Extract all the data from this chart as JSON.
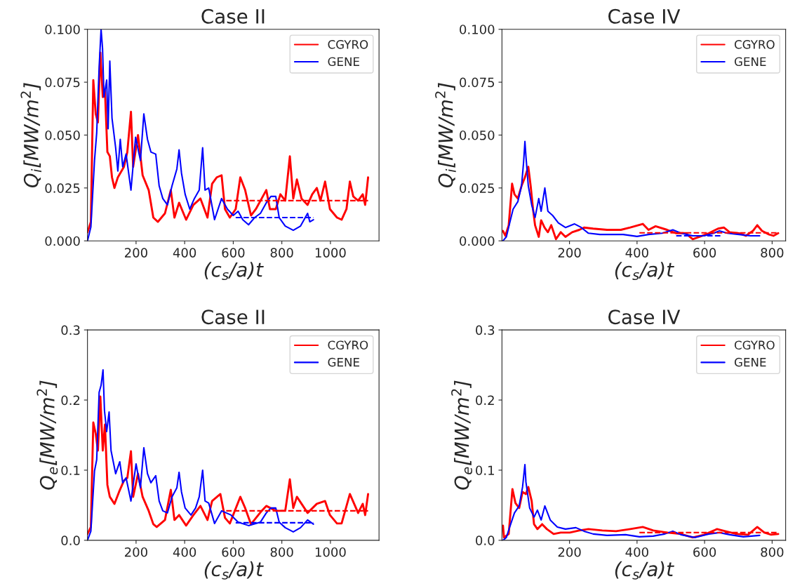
{
  "chart_data": [
    {
      "type": "line",
      "title": "Case II",
      "xlabel": "(c$_{s}$/a)t",
      "ylabel": "Q$_{i}$[MW/m$^{2}$]",
      "xlim": [
        0,
        1200
      ],
      "xticks": [
        200,
        400,
        600,
        800,
        1000
      ],
      "ylim": [
        0,
        0.1
      ],
      "yticks": [
        {
          "value": 0,
          "label": "0.000"
        },
        {
          "value": 0.025,
          "label": "0.025"
        },
        {
          "value": 0.05,
          "label": "0.050"
        },
        {
          "value": 0.075,
          "label": "0.075"
        },
        {
          "value": 0.1,
          "label": "0.100"
        }
      ],
      "legend": "top right",
      "grid": false,
      "series": [
        {
          "name": "CGYRO",
          "color": "#ff0000",
          "line_style": "solid",
          "x": [
            0,
            14,
            24,
            34,
            43,
            53,
            63,
            72,
            82,
            92,
            101,
            111,
            125,
            150,
            164,
            179,
            188,
            208,
            227,
            252,
            271,
            290,
            319,
            343,
            358,
            377,
            406,
            436,
            465,
            494,
            513,
            532,
            552,
            566,
            586,
            610,
            629,
            649,
            673,
            693,
            717,
            736,
            751,
            775,
            794,
            814,
            833,
            847,
            862,
            881,
            906,
            925,
            944,
            959,
            978,
            998,
            1027,
            1046,
            1066,
            1080,
            1094,
            1114,
            1133,
            1143,
            1155
          ],
          "values": [
            0.004,
            0.009,
            0.076,
            0.06,
            0.056,
            0.089,
            0.068,
            0.071,
            0.042,
            0.04,
            0.03,
            0.025,
            0.03,
            0.035,
            0.042,
            0.061,
            0.035,
            0.05,
            0.031,
            0.024,
            0.011,
            0.009,
            0.013,
            0.024,
            0.011,
            0.018,
            0.01,
            0.017,
            0.02,
            0.011,
            0.027,
            0.03,
            0.031,
            0.015,
            0.011,
            0.015,
            0.03,
            0.024,
            0.012,
            0.015,
            0.02,
            0.024,
            0.015,
            0.015,
            0.022,
            0.019,
            0.04,
            0.02,
            0.029,
            0.02,
            0.017,
            0.022,
            0.025,
            0.019,
            0.028,
            0.015,
            0.011,
            0.01,
            0.015,
            0.028,
            0.021,
            0.019,
            0.022,
            0.017,
            0.03
          ]
        },
        {
          "name": "GENE",
          "color": "#0000ff",
          "line_style": "solid",
          "x": [
            0,
            14,
            29,
            38,
            48,
            56,
            62,
            68,
            79,
            85,
            92,
            101,
            116,
            125,
            135,
            145,
            159,
            179,
            198,
            218,
            232,
            247,
            261,
            281,
            295,
            310,
            329,
            348,
            368,
            377,
            387,
            402,
            421,
            440,
            460,
            474,
            484,
            499,
            523,
            552,
            576,
            600,
            620,
            639,
            663,
            688,
            712,
            736,
            755,
            775,
            789,
            814,
            847,
            877,
            906,
            915,
            930
          ],
          "values": [
            0,
            0.0065,
            0.038,
            0.051,
            0.082,
            0.1,
            0.091,
            0.068,
            0.076,
            0.053,
            0.085,
            0.058,
            0.044,
            0.033,
            0.048,
            0.035,
            0.041,
            0.024,
            0.049,
            0.038,
            0.06,
            0.048,
            0.042,
            0.041,
            0.026,
            0.02,
            0.017,
            0.026,
            0.034,
            0.043,
            0.032,
            0.022,
            0.015,
            0.02,
            0.024,
            0.044,
            0.024,
            0.025,
            0.01,
            0.02,
            0.015,
            0.012,
            0.014,
            0.01,
            0.0076,
            0.011,
            0.013,
            0.018,
            0.021,
            0.021,
            0.011,
            0.007,
            0.005,
            0.007,
            0.013,
            0.009,
            0.01
          ]
        },
        {
          "color": "#ff0000",
          "line_style": "dashed",
          "x": [
            571,
            1155
          ],
          "values": [
            0.019,
            0.019
          ]
        },
        {
          "color": "#0000ff",
          "line_style": "dashed",
          "x": [
            610,
            930
          ],
          "values": [
            0.011,
            0.011
          ]
        }
      ]
    },
    {
      "type": "line",
      "title": "Case IV",
      "xlabel": "(c$_{s}$/a)t",
      "ylabel": "Q$_{i}$[MW/m$^{2}$]",
      "xlim": [
        0,
        840
      ],
      "xticks": [
        200,
        400,
        600,
        800
      ],
      "ylim": [
        0,
        0.1
      ],
      "yticks": [
        {
          "value": 0,
          "label": "0.000"
        },
        {
          "value": 0.025,
          "label": "0.025"
        },
        {
          "value": 0.05,
          "label": "0.050"
        },
        {
          "value": 0.075,
          "label": "0.075"
        },
        {
          "value": 0.1,
          "label": "0.100"
        }
      ],
      "legend": "top right",
      "grid": false,
      "series": [
        {
          "name": "CGYRO",
          "color": "#ff0000",
          "line_style": "solid",
          "x": [
            3,
            10,
            20,
            30,
            37,
            47,
            58,
            68,
            78,
            85,
            92,
            98,
            109,
            116,
            126,
            136,
            146,
            160,
            174,
            188,
            208,
            229,
            243,
            270,
            311,
            352,
            380,
            417,
            434,
            455,
            489,
            516,
            544,
            565,
            585,
            613,
            640,
            657,
            674,
            702,
            722,
            743,
            756,
            770,
            791,
            804,
            818
          ],
          "values": [
            0.0047,
            0.0024,
            0.0074,
            0.027,
            0.022,
            0.02,
            0.026,
            0.03,
            0.035,
            0.026,
            0.015,
            0.0074,
            0.0019,
            0.0097,
            0.0063,
            0.0041,
            0.0074,
            0.0008,
            0.0041,
            0.0019,
            0.0041,
            0.0052,
            0.0063,
            0.0058,
            0.0052,
            0.0052,
            0.0063,
            0.008,
            0.0052,
            0.0069,
            0.0052,
            0.0036,
            0.0036,
            0.0008,
            0.0019,
            0.0036,
            0.0058,
            0.0063,
            0.0041,
            0.0036,
            0.0024,
            0.0047,
            0.0074,
            0.0047,
            0.003,
            0.0024,
            0.0036
          ]
        },
        {
          "name": "GENE",
          "color": "#0000ff",
          "line_style": "solid",
          "x": [
            3,
            13,
            23,
            33,
            47,
            58,
            64,
            68,
            71,
            78,
            88,
            98,
            109,
            116,
            127,
            136,
            150,
            167,
            188,
            215,
            235,
            256,
            290,
            325,
            359,
            400,
            434,
            475,
            506,
            530,
            565,
            599,
            627,
            644,
            667,
            702,
            736,
            763
          ],
          "values": [
            0,
            0.0019,
            0.0085,
            0.015,
            0.0185,
            0.026,
            0.037,
            0.047,
            0.04,
            0.026,
            0.017,
            0.011,
            0.02,
            0.014,
            0.025,
            0.014,
            0.012,
            0.0085,
            0.0063,
            0.008,
            0.0063,
            0.0036,
            0.003,
            0.003,
            0.003,
            0.0021,
            0.003,
            0.0036,
            0.0052,
            0.0036,
            0.0024,
            0.0024,
            0.0036,
            0.0047,
            0.0036,
            0.003,
            0.0024,
            0.0024
          ]
        },
        {
          "color": "#ff0000",
          "line_style": "dashed",
          "x": [
            407,
            818
          ],
          "values": [
            0.0038,
            0.0038
          ]
        },
        {
          "color": "#0000ff",
          "line_style": "dashed",
          "x": [
            516,
            647
          ],
          "values": [
            0.0024,
            0.0024
          ]
        }
      ]
    },
    {
      "type": "line",
      "title": "Case II",
      "xlabel": "(c$_{s}$/a)t",
      "ylabel": "Q$_{e}$[MW/m$^{2}$]",
      "xlim": [
        0,
        1200
      ],
      "xticks": [
        200,
        400,
        600,
        800,
        1000
      ],
      "ylim": [
        0,
        0.3
      ],
      "yticks": [
        {
          "value": 0,
          "label": "0.0"
        },
        {
          "value": 0.1,
          "label": "0.1"
        },
        {
          "value": 0.2,
          "label": "0.2"
        },
        {
          "value": 0.3,
          "label": "0.3"
        }
      ],
      "legend": "top right",
      "grid": false,
      "series": [
        {
          "name": "CGYRO",
          "color": "#ff0000",
          "line_style": "solid",
          "x": [
            0,
            14,
            24,
            34,
            43,
            53,
            63,
            72,
            82,
            92,
            111,
            130,
            150,
            164,
            179,
            188,
            208,
            227,
            252,
            271,
            285,
            319,
            343,
            358,
            377,
            406,
            436,
            465,
            494,
            513,
            547,
            566,
            586,
            629,
            649,
            673,
            717,
            736,
            775,
            814,
            833,
            847,
            862,
            906,
            944,
            978,
            998,
            1027,
            1046,
            1080,
            1114,
            1133,
            1143,
            1155
          ],
          "values": [
            0.009,
            0.019,
            0.168,
            0.152,
            0.128,
            0.205,
            0.128,
            0.165,
            0.079,
            0.062,
            0.052,
            0.069,
            0.085,
            0.089,
            0.127,
            0.062,
            0.095,
            0.062,
            0.042,
            0.023,
            0.019,
            0.029,
            0.072,
            0.029,
            0.036,
            0.021,
            0.036,
            0.049,
            0.029,
            0.056,
            0.066,
            0.032,
            0.024,
            0.062,
            0.046,
            0.023,
            0.042,
            0.049,
            0.042,
            0.042,
            0.087,
            0.046,
            0.062,
            0.039,
            0.052,
            0.056,
            0.036,
            0.024,
            0.024,
            0.066,
            0.039,
            0.052,
            0.036,
            0.066
          ]
        },
        {
          "name": "GENE",
          "color": "#0000ff",
          "line_style": "solid",
          "x": [
            0,
            14,
            29,
            38,
            48,
            56,
            64,
            70,
            79,
            89,
            97,
            116,
            133,
            145,
            159,
            179,
            200,
            218,
            232,
            247,
            261,
            281,
            295,
            310,
            329,
            348,
            368,
            377,
            387,
            402,
            426,
            445,
            460,
            474,
            484,
            499,
            523,
            552,
            591,
            620,
            663,
            712,
            736,
            755,
            775,
            789,
            814,
            847,
            877,
            906,
            930
          ],
          "values": [
            0,
            0.013,
            0.099,
            0.115,
            0.211,
            0.221,
            0.243,
            0.185,
            0.155,
            0.183,
            0.128,
            0.095,
            0.112,
            0.082,
            0.089,
            0.056,
            0.109,
            0.075,
            0.132,
            0.095,
            0.082,
            0.092,
            0.056,
            0.042,
            0.039,
            0.062,
            0.075,
            0.097,
            0.069,
            0.046,
            0.036,
            0.046,
            0.062,
            0.1,
            0.056,
            0.053,
            0.024,
            0.042,
            0.036,
            0.026,
            0.021,
            0.026,
            0.039,
            0.046,
            0.046,
            0.026,
            0.018,
            0.012,
            0.018,
            0.029,
            0.023
          ]
        },
        {
          "color": "#ff0000",
          "line_style": "dashed",
          "x": [
            571,
            1155
          ],
          "values": [
            0.042,
            0.042
          ]
        },
        {
          "color": "#0000ff",
          "line_style": "dashed",
          "x": [
            610,
            930
          ],
          "values": [
            0.025,
            0.025
          ]
        }
      ]
    },
    {
      "type": "line",
      "title": "Case IV",
      "xlabel": "(c$_{s}$/a)t",
      "ylabel": "Q$_{e}$[MW/m$^{2}$]",
      "xlim": [
        0,
        840
      ],
      "xticks": [
        200,
        400,
        600,
        800
      ],
      "ylim": [
        0,
        0.3
      ],
      "yticks": [
        {
          "value": 0,
          "label": "0.0"
        },
        {
          "value": 0.1,
          "label": "0.1"
        },
        {
          "value": 0.2,
          "label": "0.2"
        },
        {
          "value": 0.3,
          "label": "0.3"
        }
      ],
      "legend": "top right",
      "grid": false,
      "series": [
        {
          "name": "CGYRO",
          "color": "#ff0000",
          "line_style": "solid",
          "x": [
            3,
            6,
            20,
            31,
            40,
            51,
            61,
            71,
            78,
            88,
            95,
            105,
            119,
            133,
            153,
            174,
            201,
            229,
            256,
            297,
            338,
            380,
            417,
            448,
            489,
            530,
            565,
            599,
            637,
            661,
            695,
            729,
            756,
            777,
            797,
            818
          ],
          "values": [
            0.021,
            0.004,
            0.009,
            0.073,
            0.053,
            0.046,
            0.069,
            0.066,
            0.076,
            0.056,
            0.023,
            0.016,
            0.023,
            0.016,
            0.009,
            0.011,
            0.011,
            0.014,
            0.016,
            0.014,
            0.013,
            0.016,
            0.019,
            0.014,
            0.011,
            0.009,
            0.004,
            0.008,
            0.016,
            0.013,
            0.009,
            0.008,
            0.019,
            0.011,
            0.008,
            0.009
          ]
        },
        {
          "name": "GENE",
          "color": "#0000ff",
          "line_style": "solid",
          "x": [
            3,
            13,
            23,
            37,
            51,
            61,
            68,
            71,
            82,
            95,
            105,
            116,
            127,
            143,
            164,
            188,
            219,
            243,
            270,
            311,
            366,
            407,
            448,
            482,
            506,
            530,
            571,
            613,
            644,
            674,
            715,
            763
          ],
          "values": [
            0,
            0.004,
            0.019,
            0.039,
            0.049,
            0.076,
            0.108,
            0.083,
            0.046,
            0.033,
            0.043,
            0.029,
            0.049,
            0.029,
            0.019,
            0.016,
            0.018,
            0.013,
            0.009,
            0.007,
            0.008,
            0.005,
            0.006,
            0.009,
            0.013,
            0.008,
            0.004,
            0.009,
            0.011,
            0.008,
            0.005,
            0.007
          ]
        },
        {
          "color": "#ff0000",
          "line_style": "dashed",
          "x": [
            407,
            818
          ],
          "values": [
            0.011,
            0.011
          ]
        }
      ]
    }
  ]
}
